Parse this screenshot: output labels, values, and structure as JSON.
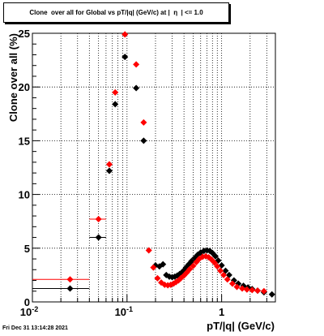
{
  "title": "Clone  over all for Global vs pT/|q| (GeV/c) at |  η  | <= 1.0",
  "footer": "Fri Dec 31 13:14:28 2021",
  "chart_data": {
    "type": "scatter",
    "title": "Clone  over all for Global vs pT/|q| (GeV/c) at |  η  | <= 1.0",
    "xlabel": "pT/|q| (GeV/c)",
    "ylabel": "Clone  over all (%)",
    "xscale": "log",
    "xlim": [
      0.01,
      3.7
    ],
    "ylim": [
      0,
      25
    ],
    "x_tick_labels": [
      "10^-2",
      "10^-1",
      "1"
    ],
    "y_ticks": [
      0,
      5,
      10,
      15,
      20,
      25
    ],
    "grid": true,
    "series": [
      {
        "color": "#000000",
        "points": [
          {
            "x": 0.025,
            "y": 1.25,
            "xlo": 0.01,
            "xhi": 0.04
          },
          {
            "x": 0.05,
            "y": 6.0,
            "xlo": 0.04,
            "xhi": 0.06
          },
          {
            "x": 0.065,
            "y": 12.2
          },
          {
            "x": 0.075,
            "y": 18.4
          },
          {
            "x": 0.095,
            "y": 22.8
          },
          {
            "x": 0.125,
            "y": 19.9
          },
          {
            "x": 0.15,
            "y": 15.0
          },
          {
            "x": 0.2,
            "y": 3.4
          },
          {
            "x": 0.22,
            "y": 3.3
          },
          {
            "x": 0.24,
            "y": 3.5
          },
          {
            "x": 0.26,
            "y": 2.5
          },
          {
            "x": 0.28,
            "y": 2.35
          },
          {
            "x": 0.3,
            "y": 2.3
          },
          {
            "x": 0.32,
            "y": 2.35
          },
          {
            "x": 0.34,
            "y": 2.45
          },
          {
            "x": 0.36,
            "y": 2.6
          },
          {
            "x": 0.38,
            "y": 2.75
          },
          {
            "x": 0.4,
            "y": 2.95
          },
          {
            "x": 0.42,
            "y": 3.2
          },
          {
            "x": 0.45,
            "y": 3.5
          },
          {
            "x": 0.48,
            "y": 3.8
          },
          {
            "x": 0.52,
            "y": 4.1
          },
          {
            "x": 0.56,
            "y": 4.4
          },
          {
            "x": 0.6,
            "y": 4.6
          },
          {
            "x": 0.65,
            "y": 4.75
          },
          {
            "x": 0.7,
            "y": 4.8
          },
          {
            "x": 0.75,
            "y": 4.75
          },
          {
            "x": 0.8,
            "y": 4.55
          },
          {
            "x": 0.86,
            "y": 4.25
          },
          {
            "x": 0.92,
            "y": 3.85
          },
          {
            "x": 1.0,
            "y": 3.4
          },
          {
            "x": 1.1,
            "y": 2.9
          },
          {
            "x": 1.2,
            "y": 2.5
          },
          {
            "x": 1.35,
            "y": 2.0
          },
          {
            "x": 1.5,
            "y": 1.7
          },
          {
            "x": 1.7,
            "y": 1.5
          },
          {
            "x": 1.9,
            "y": 1.35
          },
          {
            "x": 2.1,
            "y": 1.2
          },
          {
            "x": 2.4,
            "y": 1.05
          },
          {
            "x": 2.8,
            "y": 0.9
          },
          {
            "x": 3.4,
            "y": 0.7
          }
        ]
      },
      {
        "color": "#ff0000",
        "points": [
          {
            "x": 0.025,
            "y": 2.1,
            "xlo": 0.01,
            "xhi": 0.04
          },
          {
            "x": 0.05,
            "y": 7.7,
            "xlo": 0.04,
            "xhi": 0.06
          },
          {
            "x": 0.065,
            "y": 12.8
          },
          {
            "x": 0.075,
            "y": 19.5
          },
          {
            "x": 0.095,
            "y": 24.9
          },
          {
            "x": 0.125,
            "y": 22.1
          },
          {
            "x": 0.15,
            "y": 16.7
          },
          {
            "x": 0.17,
            "y": 4.8
          },
          {
            "x": 0.19,
            "y": 3.2
          },
          {
            "x": 0.21,
            "y": 2.2
          },
          {
            "x": 0.23,
            "y": 1.8
          },
          {
            "x": 0.25,
            "y": 1.6
          },
          {
            "x": 0.27,
            "y": 1.55
          },
          {
            "x": 0.29,
            "y": 1.6
          },
          {
            "x": 0.31,
            "y": 1.7
          },
          {
            "x": 0.33,
            "y": 1.85
          },
          {
            "x": 0.35,
            "y": 2.0
          },
          {
            "x": 0.37,
            "y": 2.2
          },
          {
            "x": 0.4,
            "y": 2.45
          },
          {
            "x": 0.43,
            "y": 2.75
          },
          {
            "x": 0.46,
            "y": 3.05
          },
          {
            "x": 0.5,
            "y": 3.35
          },
          {
            "x": 0.54,
            "y": 3.7
          },
          {
            "x": 0.58,
            "y": 4.0
          },
          {
            "x": 0.63,
            "y": 4.2
          },
          {
            "x": 0.68,
            "y": 4.25
          },
          {
            "x": 0.73,
            "y": 4.15
          },
          {
            "x": 0.78,
            "y": 3.95
          },
          {
            "x": 0.84,
            "y": 3.65
          },
          {
            "x": 0.9,
            "y": 3.3
          },
          {
            "x": 0.97,
            "y": 2.9
          },
          {
            "x": 1.05,
            "y": 2.5
          },
          {
            "x": 1.15,
            "y": 2.1
          },
          {
            "x": 1.3,
            "y": 1.7
          },
          {
            "x": 1.45,
            "y": 1.4
          },
          {
            "x": 1.65,
            "y": 1.25
          },
          {
            "x": 1.85,
            "y": 1.15
          },
          {
            "x": 2.1,
            "y": 1.1
          },
          {
            "x": 2.4,
            "y": 1.05
          },
          {
            "x": 2.8,
            "y": 1.0
          }
        ]
      }
    ]
  }
}
